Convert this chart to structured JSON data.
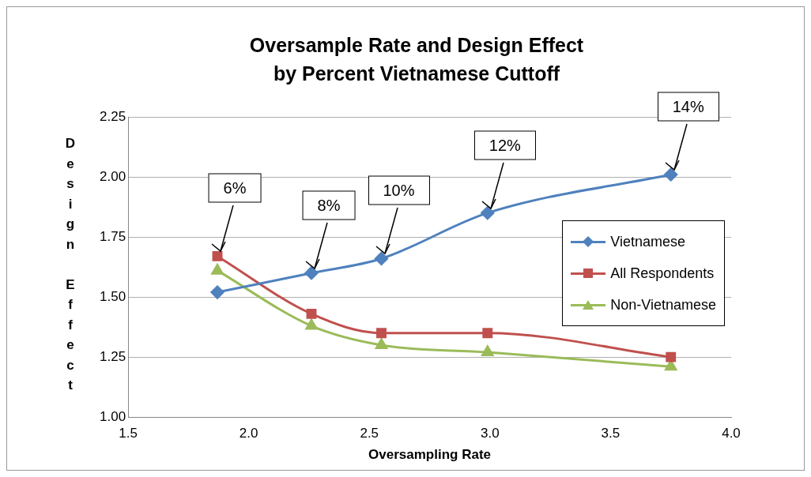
{
  "chart_data": {
    "type": "line",
    "title": "Oversample Rate and Design Effect by Percent Vietnamese Cuttoff",
    "xlabel": "Oversampling Rate",
    "ylabel": "Design Effect",
    "x": [
      1.87,
      2.26,
      2.55,
      2.99,
      3.75
    ],
    "series": [
      {
        "name": "Vietnamese",
        "color": "#4f81bd",
        "marker": "diamond",
        "values": [
          1.52,
          1.6,
          1.66,
          1.85,
          2.01
        ]
      },
      {
        "name": "All Respondents",
        "color": "#c0504d",
        "marker": "square",
        "values": [
          1.67,
          1.43,
          1.35,
          1.35,
          1.25
        ]
      },
      {
        "name": "Non-Vietnamese",
        "color": "#9bbb59",
        "marker": "triangle",
        "values": [
          1.61,
          1.38,
          1.3,
          1.27,
          1.21
        ]
      }
    ],
    "xlim": [
      1.5,
      4.0
    ],
    "xticks": [
      {
        "value": 1.5,
        "label": "1.5"
      },
      {
        "value": 2,
        "label": "2.0"
      },
      {
        "value": 2.5,
        "label": "2.5"
      },
      {
        "value": 3,
        "label": "3.0"
      },
      {
        "value": 3.5,
        "label": "3.5"
      },
      {
        "value": 4,
        "label": "4.0"
      }
    ],
    "ylim": [
      1.0,
      2.25
    ],
    "yticks": [
      {
        "value": 1,
        "label": "1.00"
      },
      {
        "value": 1.25,
        "label": "1.25"
      },
      {
        "value": 1.5,
        "label": "1.50"
      },
      {
        "value": 1.75,
        "label": "1.75"
      },
      {
        "value": 2,
        "label": "2.00"
      },
      {
        "value": 2.25,
        "label": "2.25"
      }
    ],
    "grid": "y",
    "legend": "right",
    "annotations": [
      {
        "text": "6%",
        "x": 1.87,
        "y": 1.67
      },
      {
        "text": "8%",
        "x": 2.26,
        "y": 1.6
      },
      {
        "text": "10%",
        "x": 2.55,
        "y": 1.66
      },
      {
        "text": "12%",
        "x": 2.99,
        "y": 1.85
      },
      {
        "text": "14%",
        "x": 3.75,
        "y": 2.01
      }
    ]
  }
}
